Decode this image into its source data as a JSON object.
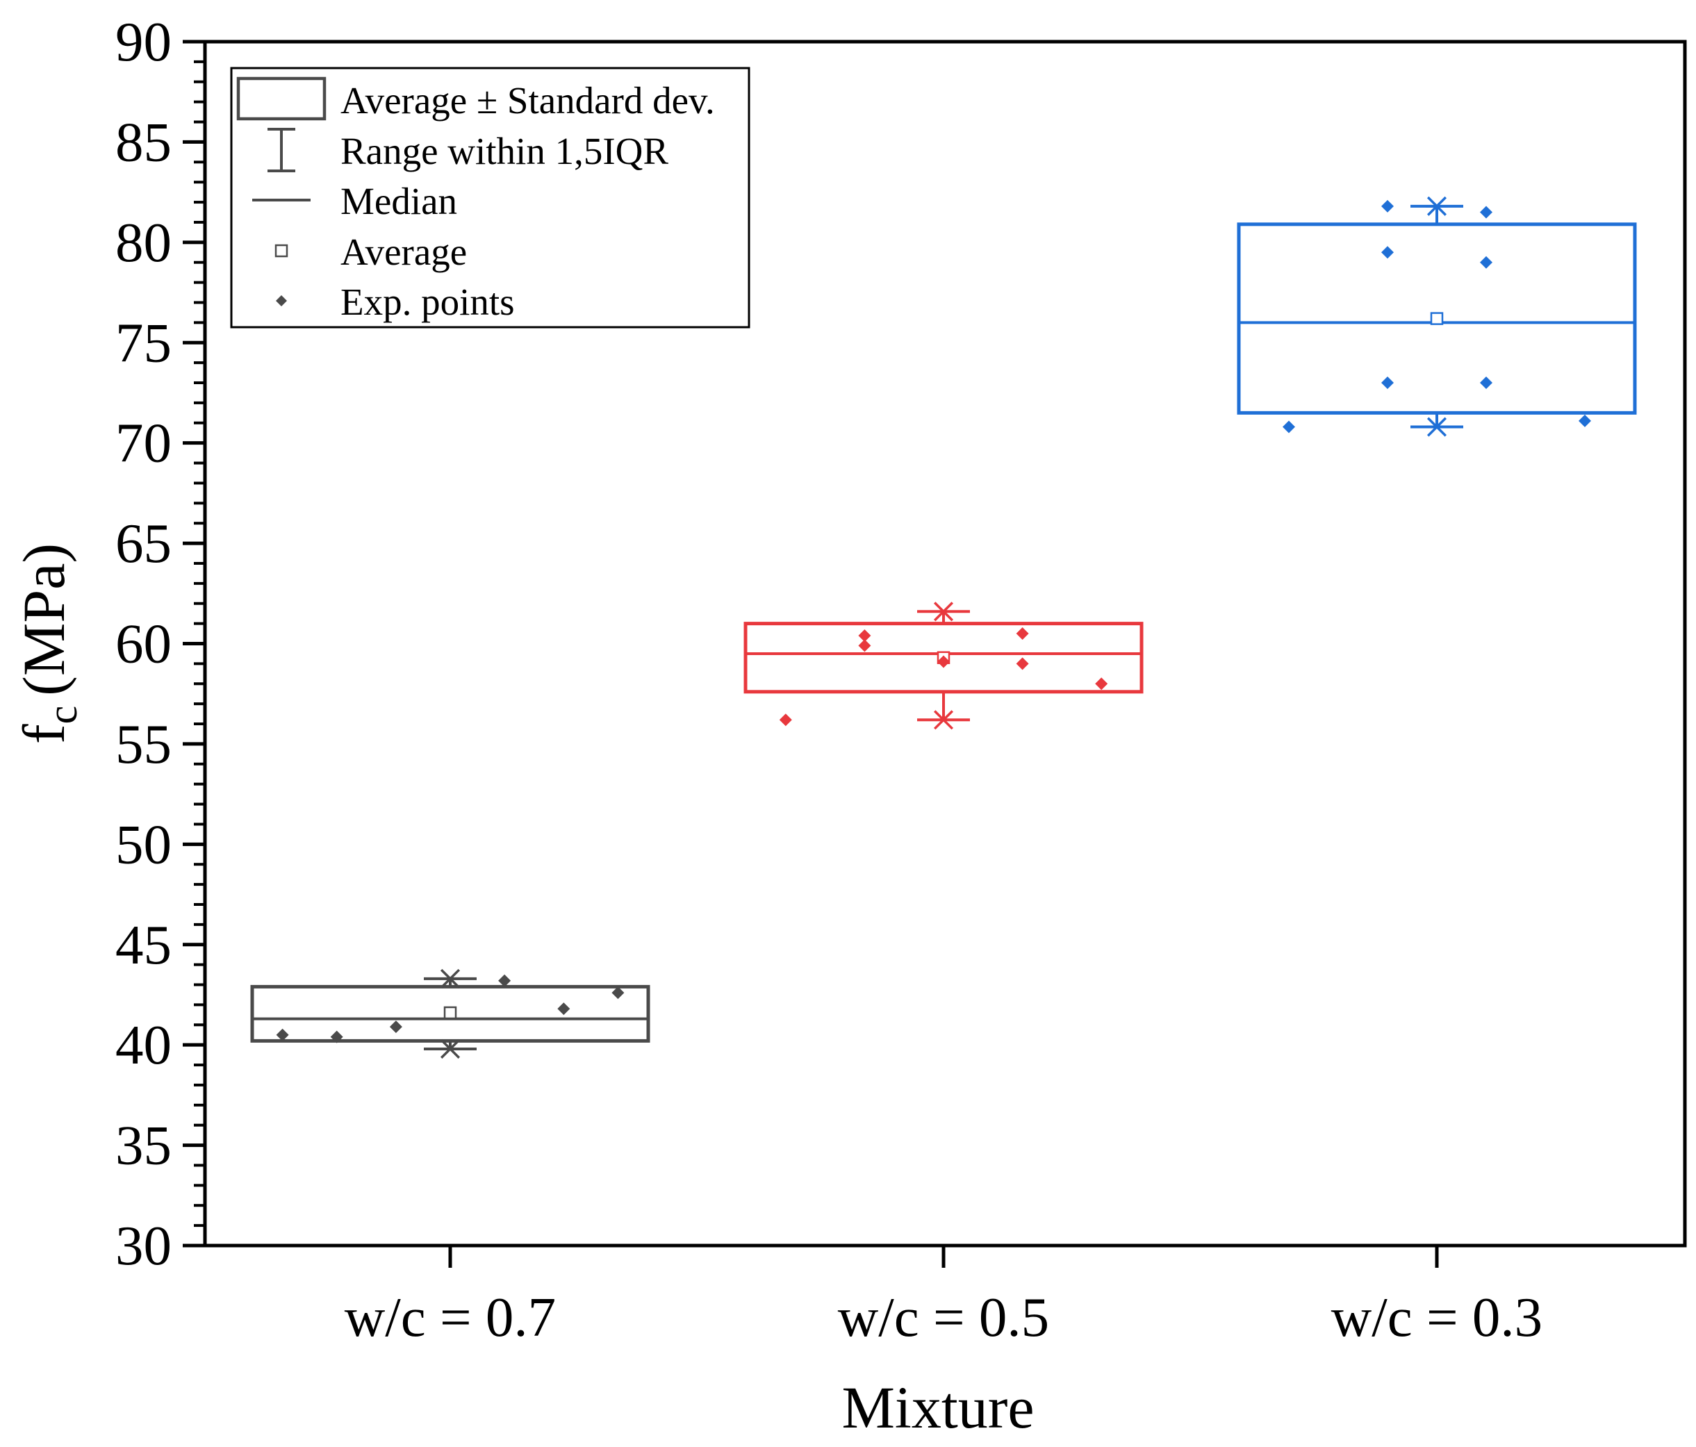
{
  "chart_data": {
    "type": "box",
    "xlabel": "Mixture",
    "ylabel_main": "f",
    "ylabel_sub": "c",
    "ylabel_unit": "(MPa)",
    "ylim": [
      30,
      90
    ],
    "yticks": [
      30,
      35,
      40,
      45,
      50,
      55,
      60,
      65,
      70,
      75,
      80,
      85,
      90
    ],
    "categories": [
      "w/c = 0.7",
      "w/c = 0.5",
      "w/c = 0.3"
    ],
    "colors": [
      "#4a4a4a",
      "#e8383d",
      "#1f6fd6"
    ],
    "legend": {
      "position": "top-left",
      "entries": [
        {
          "symbol": "box",
          "label": "Average ± Standard dev."
        },
        {
          "symbol": "whisker",
          "label": "Range within 1,5IQR"
        },
        {
          "symbol": "line",
          "label": "Median"
        },
        {
          "symbol": "square",
          "label": "Average"
        },
        {
          "symbol": "diamond",
          "label": "Exp. points"
        }
      ]
    },
    "series": [
      {
        "name": "w/c = 0.7",
        "box_low": 40.2,
        "box_high": 42.9,
        "median": 41.3,
        "mean": 41.6,
        "whisker_low": 39.8,
        "whisker_high": 43.3,
        "points": [
          {
            "x": -0.34,
            "y": 40.5
          },
          {
            "x": -0.23,
            "y": 40.4
          },
          {
            "x": -0.11,
            "y": 40.9
          },
          {
            "x": 0.11,
            "y": 43.2
          },
          {
            "x": 0.23,
            "y": 41.8
          },
          {
            "x": 0.34,
            "y": 42.6
          }
        ]
      },
      {
        "name": "w/c = 0.5",
        "box_low": 57.6,
        "box_high": 61.0,
        "median": 59.5,
        "mean": 59.3,
        "whisker_low": 56.2,
        "whisker_high": 61.6,
        "points": [
          {
            "x": -0.32,
            "y": 56.2
          },
          {
            "x": -0.16,
            "y": 60.4
          },
          {
            "x": -0.16,
            "y": 59.9
          },
          {
            "x": 0.0,
            "y": 59.1
          },
          {
            "x": 0.16,
            "y": 60.5
          },
          {
            "x": 0.16,
            "y": 59.0
          },
          {
            "x": 0.32,
            "y": 58.0
          }
        ]
      },
      {
        "name": "w/c = 0.3",
        "box_low": 71.5,
        "box_high": 80.9,
        "median": 76.0,
        "mean": 76.2,
        "whisker_low": 70.8,
        "whisker_high": 81.8,
        "points": [
          {
            "x": -0.3,
            "y": 70.8
          },
          {
            "x": -0.1,
            "y": 81.8
          },
          {
            "x": -0.1,
            "y": 79.5
          },
          {
            "x": -0.1,
            "y": 73.0
          },
          {
            "x": 0.1,
            "y": 81.5
          },
          {
            "x": 0.1,
            "y": 79.0
          },
          {
            "x": 0.1,
            "y": 73.0
          },
          {
            "x": 0.3,
            "y": 71.1
          }
        ]
      }
    ]
  }
}
